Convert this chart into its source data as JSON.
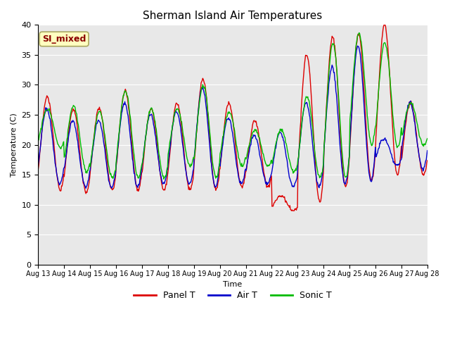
{
  "title": "Sherman Island Air Temperatures",
  "xlabel": "Time",
  "ylabel": "Temperature (C)",
  "ylim": [
    0,
    40
  ],
  "yticks": [
    0,
    5,
    10,
    15,
    20,
    25,
    30,
    35,
    40
  ],
  "x_labels": [
    "Aug 13",
    "Aug 14",
    "Aug 15",
    "Aug 16",
    "Aug 17",
    "Aug 18",
    "Aug 19",
    "Aug 20",
    "Aug 21",
    "Aug 22",
    "Aug 23",
    "Aug 24",
    "Aug 25",
    "Aug 26",
    "Aug 27",
    "Aug 28"
  ],
  "legend_label": "SI_mixed",
  "legend_text_color": "#8b0000",
  "legend_bg": "#ffffc0",
  "line_colors": {
    "panel": "#dd0000",
    "air": "#0000cc",
    "sonic": "#00bb00"
  },
  "line_width": 1.0,
  "bg_color": "#e8e8e8",
  "grid_color": "#ffffff",
  "figsize": [
    6.4,
    4.8
  ],
  "dpi": 100
}
